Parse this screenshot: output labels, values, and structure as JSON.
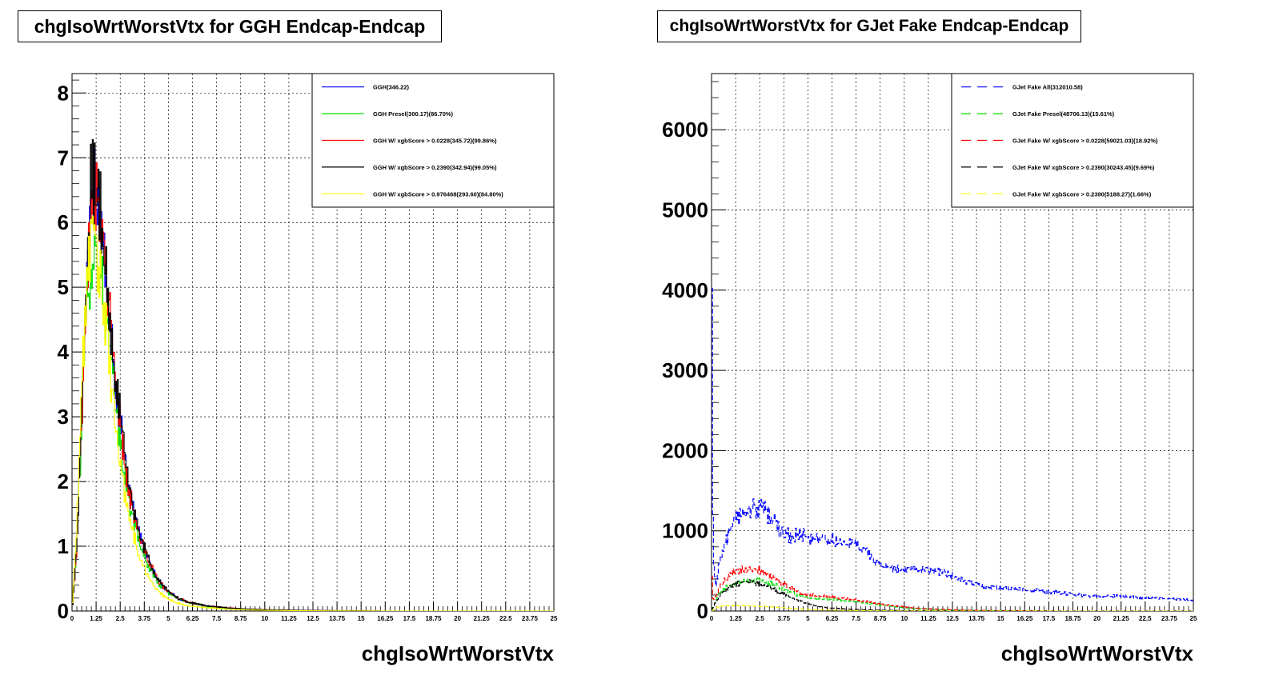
{
  "chart_data": [
    {
      "type": "line",
      "title": "chgIsoWrtWorstVtx for GGH Endcap-Endcap",
      "xlabel": "chgIsoWrtWorstVtx",
      "ylabel": "",
      "xlim": [
        0,
        25
      ],
      "ylim": [
        0,
        8.3
      ],
      "grid": true,
      "legend_position": "top-right",
      "x_ticks": [
        "0",
        "1.25",
        "2.5",
        "3.75",
        "5",
        "6.25",
        "7.5",
        "8.75",
        "10",
        "11.25",
        "12.5",
        "13.75",
        "15",
        "16.25",
        "17.5",
        "18.75",
        "20",
        "21.25",
        "22.5",
        "23.75",
        "25"
      ],
      "y_ticks": [
        "0",
        "1",
        "2",
        "3",
        "4",
        "5",
        "6",
        "7",
        "8"
      ],
      "series": [
        {
          "name": "GGH(346.22)",
          "color": "#0000ff",
          "style": "solid",
          "scale": 1.0,
          "peak_x": [
            1.1,
            2.0
          ],
          "x": [
            0,
            0.25,
            0.5,
            0.75,
            1.0,
            1.25,
            1.5,
            1.75,
            2.0,
            2.25,
            2.5,
            2.75,
            3.0,
            3.5,
            4.0,
            4.5,
            5.0,
            5.5,
            6.0,
            7.0,
            8.0,
            9.0,
            10,
            11,
            12,
            14,
            16,
            18,
            20,
            22,
            25
          ],
          "y": [
            0,
            1.0,
            3.0,
            5.0,
            6.4,
            6.5,
            6.0,
            5.2,
            4.4,
            3.6,
            2.9,
            2.3,
            1.8,
            1.15,
            0.75,
            0.45,
            0.3,
            0.2,
            0.14,
            0.08,
            0.05,
            0.03,
            0.02,
            0.015,
            0.01,
            0.005,
            0,
            0,
            0,
            0,
            0
          ]
        },
        {
          "name": "GGH Presel(300.17)(86.70%)",
          "color": "#00dd00",
          "style": "solid",
          "scale": 1.0,
          "peak_x": [
            0.9,
            1.7
          ],
          "x": [
            0,
            0.25,
            0.5,
            0.75,
            1.0,
            1.25,
            1.5,
            1.75,
            2.0,
            2.25,
            2.5,
            2.75,
            3.0,
            3.5,
            4.0,
            4.5,
            5.0,
            5.5,
            6.0,
            7.0,
            8.0,
            9.0,
            10,
            11,
            12,
            14,
            16,
            18,
            20,
            22,
            25
          ],
          "y": [
            0,
            1.0,
            2.9,
            4.8,
            5.4,
            5.6,
            5.2,
            4.6,
            3.9,
            3.2,
            2.6,
            2.1,
            1.65,
            1.05,
            0.68,
            0.42,
            0.28,
            0.19,
            0.13,
            0.07,
            0.045,
            0.03,
            0.02,
            0.012,
            0.008,
            0.004,
            0,
            0,
            0,
            0,
            0
          ]
        },
        {
          "name": "GGH W/ xgbScore > 0.0228(345.72)(99.86%)",
          "color": "#ff0000",
          "style": "solid",
          "scale": 1.0,
          "peak_x": [
            1.1,
            2.0
          ],
          "x": [
            0,
            0.25,
            0.5,
            0.75,
            1.0,
            1.25,
            1.5,
            1.75,
            2.0,
            2.25,
            2.5,
            2.75,
            3.0,
            3.5,
            4.0,
            4.5,
            5.0,
            5.5,
            6.0,
            7.0,
            8.0,
            9.0,
            10,
            11,
            12,
            14,
            16,
            18,
            20,
            22,
            25
          ],
          "y": [
            0,
            1.0,
            3.0,
            5.0,
            6.4,
            6.5,
            6.0,
            5.2,
            4.4,
            3.6,
            2.9,
            2.3,
            1.8,
            1.15,
            0.75,
            0.45,
            0.3,
            0.2,
            0.14,
            0.08,
            0.05,
            0.03,
            0.02,
            0.015,
            0.01,
            0.005,
            0,
            0,
            0,
            0,
            0
          ]
        },
        {
          "name": "GGH W/ xgbScore > 0.2390(342.94)(99.05%)",
          "color": "#000000",
          "style": "solid",
          "scale": 1.0,
          "peak_x": [
            1.0,
            2.0
          ],
          "x": [
            0,
            0.25,
            0.5,
            0.75,
            1.0,
            1.25,
            1.5,
            1.75,
            2.0,
            2.25,
            2.5,
            2.75,
            3.0,
            3.5,
            4.0,
            4.5,
            5.0,
            5.5,
            6.0,
            7.0,
            8.0,
            9.0,
            10,
            11,
            12,
            14,
            16,
            18,
            20,
            22,
            25
          ],
          "y": [
            0,
            1.0,
            3.0,
            5.1,
            6.8,
            6.5,
            6.1,
            5.3,
            4.5,
            3.7,
            3.0,
            2.35,
            1.85,
            1.2,
            0.78,
            0.47,
            0.3,
            0.2,
            0.14,
            0.08,
            0.05,
            0.03,
            0.02,
            0.015,
            0.01,
            0.005,
            0,
            0,
            0,
            0,
            0
          ]
        },
        {
          "name": "GGH W/ xgbScore > 0.976468(293.60)(84.80%)",
          "color": "#ffff00",
          "style": "solid",
          "scale": 1.0,
          "peak_x": [
            1.0,
            1.7
          ],
          "x": [
            0,
            0.25,
            0.5,
            0.75,
            1.0,
            1.25,
            1.5,
            1.75,
            2.0,
            2.25,
            2.5,
            2.75,
            3.0,
            3.5,
            4.0,
            4.5,
            5.0,
            5.5,
            6.0,
            7.0,
            8.0,
            9.0,
            10,
            11,
            12,
            14,
            16,
            18,
            20,
            22,
            25
          ],
          "y": [
            0,
            1.3,
            3.4,
            5.0,
            5.8,
            5.7,
            5.1,
            4.4,
            3.6,
            2.9,
            2.3,
            1.8,
            1.4,
            0.85,
            0.5,
            0.3,
            0.18,
            0.12,
            0.08,
            0.05,
            0.03,
            0.02,
            0.012,
            0.008,
            0.005,
            0.002,
            0,
            0,
            0,
            0,
            0
          ]
        }
      ]
    },
    {
      "type": "line",
      "title": "chgIsoWrtWorstVtx for GJet Fake Endcap-Endcap",
      "xlabel": "chgIsoWrtWorstVtx",
      "ylabel": "",
      "xlim": [
        0,
        25
      ],
      "ylim": [
        0,
        6700
      ],
      "grid": true,
      "legend_position": "top-right",
      "x_ticks": [
        "0",
        "1.25",
        "2.5",
        "3.75",
        "5",
        "6.25",
        "7.5",
        "8.75",
        "10",
        "11.25",
        "12.5",
        "13.75",
        "15",
        "16.25",
        "17.5",
        "18.75",
        "20",
        "21.25",
        "22.5",
        "23.75",
        "25"
      ],
      "y_ticks": [
        "0",
        "1000",
        "2000",
        "3000",
        "4000",
        "5000",
        "6000"
      ],
      "series": [
        {
          "name": "GJet Fake All(312010.58)",
          "color": "#0000ff",
          "style": "dashed",
          "scale": 1.0,
          "peak_x": [
            0.0,
            0.08
          ],
          "x": [
            0,
            0.08,
            0.2,
            0.5,
            1.0,
            1.5,
            2.0,
            2.5,
            3.0,
            3.4,
            3.6,
            4.0,
            5.0,
            6.0,
            7.0,
            8.0,
            8.75,
            9.5,
            10,
            11,
            12,
            13,
            14,
            15,
            16,
            17,
            18,
            19,
            20,
            21,
            22,
            23,
            24,
            25
          ],
          "y": [
            6200,
            800,
            300,
            700,
            1050,
            1200,
            1250,
            1300,
            1200,
            1100,
            950,
            950,
            920,
            900,
            850,
            760,
            560,
            520,
            520,
            520,
            480,
            380,
            320,
            290,
            270,
            250,
            230,
            200,
            180,
            190,
            170,
            160,
            150,
            130
          ]
        },
        {
          "name": "GJet Fake Presel(48706.13)(15.61%)",
          "color": "#00dd00",
          "style": "dashed",
          "scale": 1.0,
          "peak_x": [
            0.0,
            0.0
          ],
          "x": [
            0,
            0.25,
            0.5,
            1.0,
            1.5,
            2.0,
            2.5,
            3.0,
            3.5,
            4.0,
            4.5,
            5.0,
            6.0,
            7.0,
            8.0,
            9.0,
            10,
            11,
            12,
            13,
            14,
            16,
            18,
            20,
            22,
            25
          ],
          "y": [
            0,
            150,
            250,
            330,
            370,
            390,
            380,
            350,
            300,
            250,
            200,
            170,
            150,
            130,
            100,
            70,
            40,
            25,
            15,
            10,
            6,
            3,
            0,
            0,
            0,
            0
          ]
        },
        {
          "name": "GJet Fake W/ xgbScore > 0.0228(59021.03)(18.92%)",
          "color": "#ff0000",
          "style": "dashed",
          "scale": 1.0,
          "peak_x": [
            0.0,
            0.0
          ],
          "x": [
            0,
            0.08,
            0.25,
            0.5,
            1.0,
            1.5,
            2.0,
            2.5,
            3.0,
            3.5,
            4.0,
            4.5,
            5.0,
            6.0,
            7.0,
            8.0,
            9.0,
            10,
            11,
            12,
            13,
            14,
            16,
            18,
            20,
            22,
            25
          ],
          "y": [
            650,
            120,
            200,
            330,
            450,
            520,
            540,
            520,
            450,
            380,
            300,
            240,
            200,
            180,
            150,
            120,
            80,
            50,
            30,
            20,
            12,
            8,
            4,
            0,
            0,
            0,
            0
          ]
        },
        {
          "name": "GJet Fake W/ xgbScore > 0.2390(30243.45)(9.69%)",
          "color": "#000000",
          "style": "dashed",
          "scale": 1.0,
          "peak_x": [
            0.0,
            0.0
          ],
          "x": [
            0,
            0.25,
            0.5,
            1.0,
            1.5,
            2.0,
            2.5,
            3.0,
            3.5,
            4.0,
            4.5,
            5.0,
            5.5,
            6.0,
            7.0,
            8.0,
            9.0,
            10,
            11,
            12,
            14,
            16,
            18,
            20,
            22,
            25
          ],
          "y": [
            0,
            130,
            220,
            310,
            350,
            360,
            340,
            300,
            240,
            180,
            130,
            90,
            60,
            40,
            25,
            15,
            10,
            6,
            4,
            2,
            1,
            0,
            0,
            0,
            0,
            0
          ]
        },
        {
          "name": "GJet Fake W/ xgbScore > 0.2390(5188.27)(1.66%)",
          "color": "#ffff00",
          "style": "dashed",
          "scale": 1.0,
          "peak_x": [
            0.0,
            0.0
          ],
          "x": [
            0,
            0.25,
            0.5,
            1.0,
            1.5,
            2.0,
            2.5,
            3.0,
            3.5,
            4.0,
            4.5,
            5.0,
            6.0,
            7.0,
            8.0,
            9.0,
            10,
            12,
            14,
            16,
            18,
            20,
            22,
            25
          ],
          "y": [
            0,
            40,
            60,
            70,
            70,
            65,
            60,
            55,
            45,
            35,
            28,
            20,
            12,
            8,
            5,
            3,
            2,
            1,
            0,
            0,
            0,
            0,
            0,
            0
          ]
        }
      ]
    }
  ]
}
